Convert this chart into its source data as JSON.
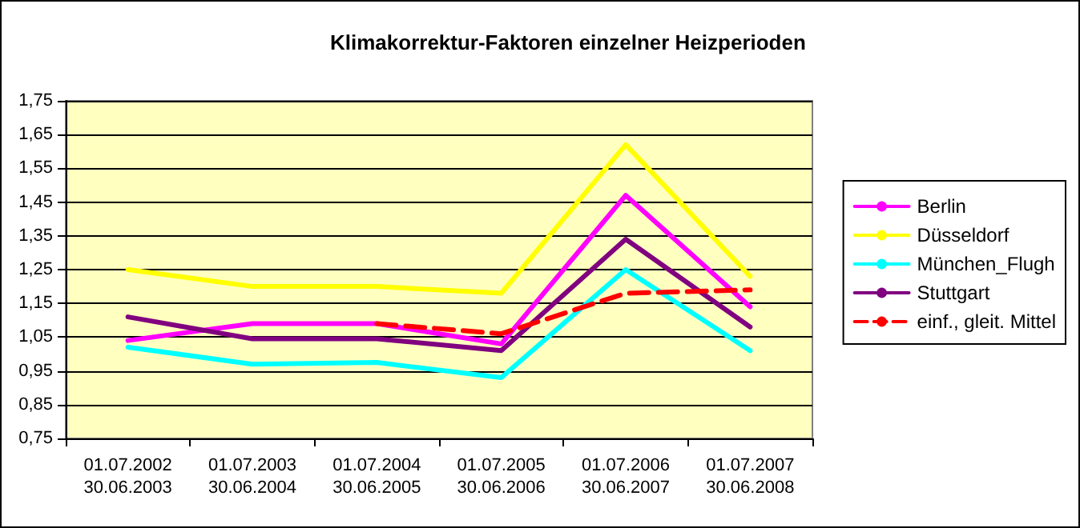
{
  "chart_data": {
    "type": "line",
    "title": "Klimakorrektur-Faktoren einzelner Heizperioden",
    "categories": [
      "01.07.2002\n30.06.2003",
      "01.07.2003\n30.06.2004",
      "01.07.2004\n30.06.2005",
      "01.07.2005\n30.06.2006",
      "01.07.2006\n30.06.2007",
      "01.07.2007\n30.06.2008"
    ],
    "series": [
      {
        "name": "Berlin",
        "color": "#ff00ff",
        "values": [
          1.04,
          1.09,
          1.09,
          1.03,
          1.47,
          1.14
        ]
      },
      {
        "name": "Düsseldorf",
        "color": "#ffff00",
        "values": [
          1.25,
          1.2,
          1.2,
          1.18,
          1.62,
          1.23
        ]
      },
      {
        "name": "München_Flugh",
        "color": "#00ffff",
        "values": [
          1.02,
          0.97,
          0.975,
          0.93,
          1.25,
          1.01
        ]
      },
      {
        "name": "Stuttgart",
        "color": "#800080",
        "values": [
          1.11,
          1.045,
          1.045,
          1.01,
          1.34,
          1.08
        ]
      },
      {
        "name": "einf., gleit. Mittel",
        "color": "#ff0000",
        "line_style": "dashed",
        "values": [
          null,
          null,
          1.09,
          1.06,
          1.18,
          1.19
        ]
      }
    ],
    "ylim": [
      0.75,
      1.75
    ],
    "yticks": [
      {
        "value": 0.75,
        "label": "0,75"
      },
      {
        "value": 0.85,
        "label": "0,85"
      },
      {
        "value": 0.95,
        "label": "0,95"
      },
      {
        "value": 1.05,
        "label": "1,05"
      },
      {
        "value": 1.15,
        "label": "1,15"
      },
      {
        "value": 1.25,
        "label": "1,25"
      },
      {
        "value": 1.35,
        "label": "1,35"
      },
      {
        "value": 1.45,
        "label": "1,45"
      },
      {
        "value": 1.55,
        "label": "1,55"
      },
      {
        "value": 1.65,
        "label": "1,65"
      },
      {
        "value": 1.75,
        "label": "1,75"
      }
    ],
    "grid": "y",
    "legend": "right",
    "marker": "none",
    "line_style": "solid"
  }
}
